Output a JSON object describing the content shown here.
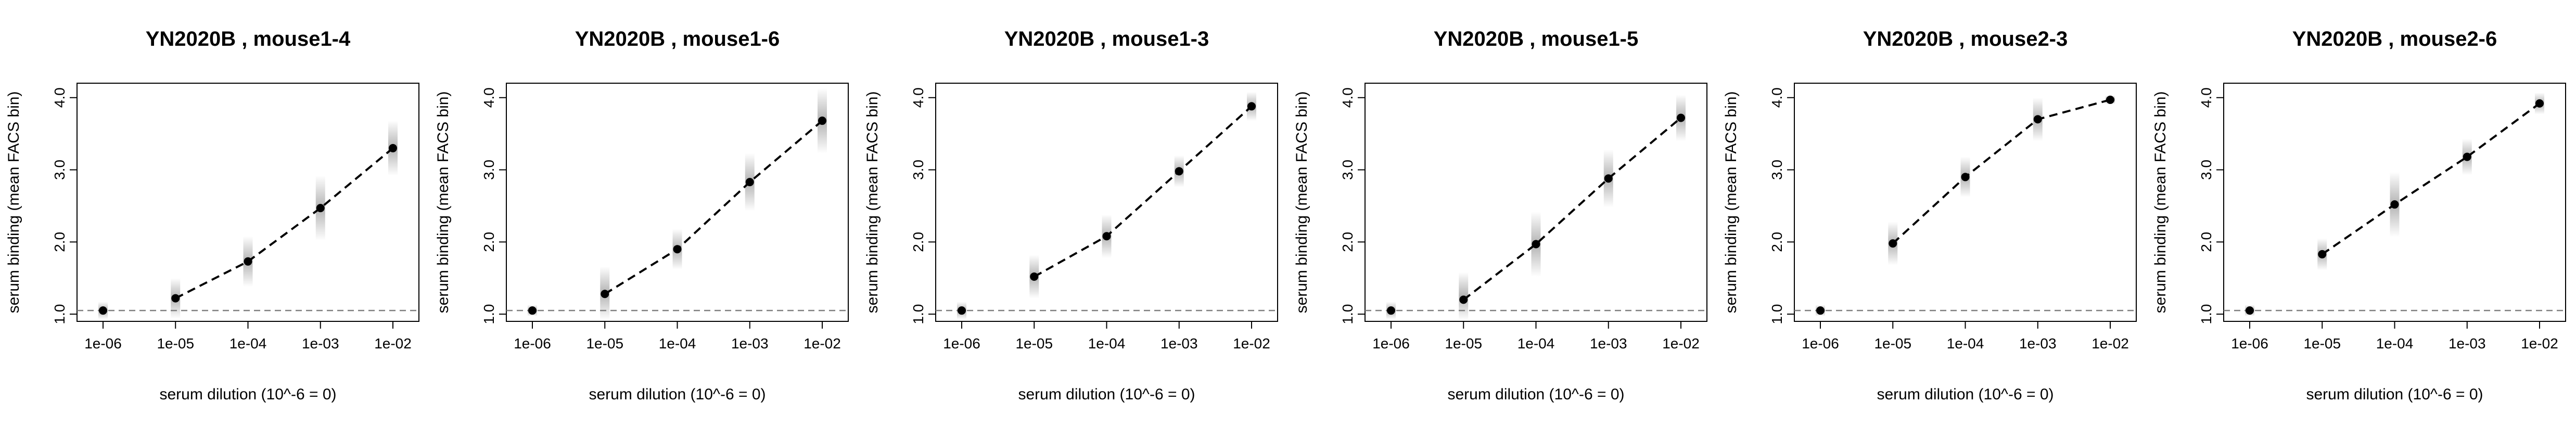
{
  "colors": {
    "line": "#000000",
    "point": "#000000",
    "baseline": "#808080",
    "posterior_shade": "#9a9a9a",
    "background": "#ffffff"
  },
  "chart_data": [
    {
      "type": "line",
      "title": "YN2020B , mouse1-4",
      "xlabel": "serum dilution (10^-6 = 0)",
      "ylabel": "serum binding (mean FACS bin)",
      "x_scale": "log10",
      "x": [
        1e-06,
        1e-05,
        0.0001,
        0.001,
        0.01
      ],
      "x_tick_labels": [
        "1e-06",
        "1e-05",
        "1e-04",
        "1e-03",
        "1e-02"
      ],
      "y_ticks": [
        1.0,
        2.0,
        3.0,
        4.0
      ],
      "y_tick_labels": [
        "1.0",
        "2.0",
        "3.0",
        "4.0"
      ],
      "ylim": [
        0.9,
        4.2
      ],
      "baseline": 1.05,
      "values": [
        1.05,
        1.22,
        1.73,
        2.47,
        3.3
      ],
      "spread": [
        0.12,
        0.28,
        0.35,
        0.45,
        0.38
      ],
      "grid": false,
      "legend": "none"
    },
    {
      "type": "line",
      "title": "YN2020B , mouse1-6",
      "xlabel": "serum dilution (10^-6 = 0)",
      "ylabel": "serum binding (mean FACS bin)",
      "x_scale": "log10",
      "x": [
        1e-06,
        1e-05,
        0.0001,
        0.001,
        0.01
      ],
      "x_tick_labels": [
        "1e-06",
        "1e-05",
        "1e-04",
        "1e-03",
        "1e-02"
      ],
      "y_ticks": [
        1.0,
        2.0,
        3.0,
        4.0
      ],
      "y_tick_labels": [
        "1.0",
        "2.0",
        "3.0",
        "4.0"
      ],
      "ylim": [
        0.9,
        4.2
      ],
      "baseline": 1.05,
      "values": [
        1.05,
        1.28,
        1.9,
        2.83,
        3.68
      ],
      "spread": [
        0.08,
        0.38,
        0.28,
        0.4,
        0.45
      ],
      "grid": false,
      "legend": "none"
    },
    {
      "type": "line",
      "title": "YN2020B , mouse1-3",
      "xlabel": "serum dilution (10^-6 = 0)",
      "ylabel": "serum binding (mean FACS bin)",
      "x_scale": "log10",
      "x": [
        1e-06,
        1e-05,
        0.0001,
        0.001,
        0.01
      ],
      "x_tick_labels": [
        "1e-06",
        "1e-05",
        "1e-04",
        "1e-03",
        "1e-02"
      ],
      "y_ticks": [
        1.0,
        2.0,
        3.0,
        4.0
      ],
      "y_tick_labels": [
        "1.0",
        "2.0",
        "3.0",
        "4.0"
      ],
      "ylim": [
        0.9,
        4.2
      ],
      "baseline": 1.05,
      "values": [
        1.05,
        1.52,
        2.08,
        2.98,
        3.88
      ],
      "spread": [
        0.12,
        0.3,
        0.3,
        0.22,
        0.2
      ],
      "grid": false,
      "legend": "none"
    },
    {
      "type": "line",
      "title": "YN2020B , mouse1-5",
      "xlabel": "serum dilution (10^-6 = 0)",
      "ylabel": "serum binding (mean FACS bin)",
      "x_scale": "log10",
      "x": [
        1e-06,
        1e-05,
        0.0001,
        0.001,
        0.01
      ],
      "x_tick_labels": [
        "1e-06",
        "1e-05",
        "1e-04",
        "1e-03",
        "1e-02"
      ],
      "y_ticks": [
        1.0,
        2.0,
        3.0,
        4.0
      ],
      "y_tick_labels": [
        "1.0",
        "2.0",
        "3.0",
        "4.0"
      ],
      "ylim": [
        0.9,
        4.2
      ],
      "baseline": 1.05,
      "values": [
        1.05,
        1.2,
        1.97,
        2.88,
        3.72
      ],
      "spread": [
        0.12,
        0.38,
        0.45,
        0.4,
        0.32
      ],
      "grid": false,
      "legend": "none"
    },
    {
      "type": "line",
      "title": "YN2020B , mouse2-3",
      "xlabel": "serum dilution (10^-6 = 0)",
      "ylabel": "serum binding (mean FACS bin)",
      "x_scale": "log10",
      "x": [
        1e-06,
        1e-05,
        0.0001,
        0.001,
        0.01
      ],
      "x_tick_labels": [
        "1e-06",
        "1e-05",
        "1e-04",
        "1e-03",
        "1e-02"
      ],
      "y_ticks": [
        1.0,
        2.0,
        3.0,
        4.0
      ],
      "y_tick_labels": [
        "1.0",
        "2.0",
        "3.0",
        "4.0"
      ],
      "ylim": [
        0.9,
        4.2
      ],
      "baseline": 1.05,
      "values": [
        1.05,
        1.98,
        2.9,
        3.7,
        3.97
      ],
      "spread": [
        0.08,
        0.3,
        0.28,
        0.3,
        0.06
      ],
      "grid": false,
      "legend": "none"
    },
    {
      "type": "line",
      "title": "YN2020B , mouse2-6",
      "xlabel": "serum dilution (10^-6 = 0)",
      "ylabel": "serum binding (mean FACS bin)",
      "x_scale": "log10",
      "x": [
        1e-06,
        1e-05,
        0.0001,
        0.001,
        0.01
      ],
      "x_tick_labels": [
        "1e-06",
        "1e-05",
        "1e-04",
        "1e-03",
        "1e-02"
      ],
      "y_ticks": [
        1.0,
        2.0,
        3.0,
        4.0
      ],
      "y_tick_labels": [
        "1.0",
        "2.0",
        "3.0",
        "4.0"
      ],
      "ylim": [
        0.9,
        4.2
      ],
      "baseline": 1.05,
      "values": [
        1.05,
        1.83,
        2.52,
        3.18,
        3.92
      ],
      "spread": [
        0.08,
        0.22,
        0.45,
        0.25,
        0.15
      ],
      "grid": false,
      "legend": "none"
    }
  ]
}
